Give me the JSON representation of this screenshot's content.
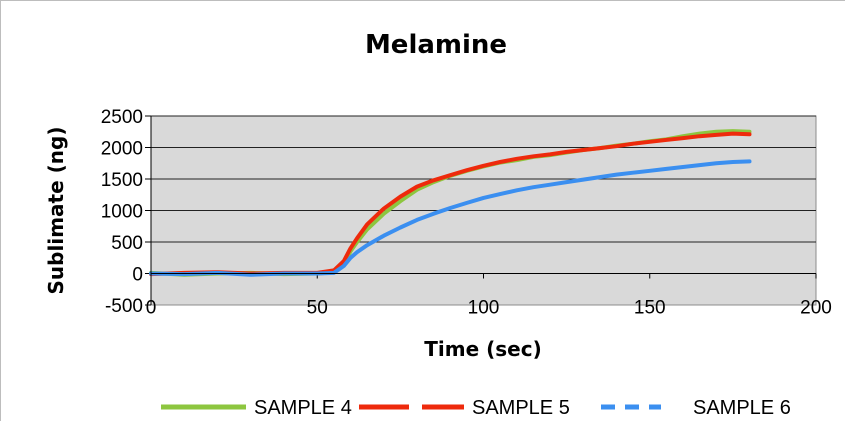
{
  "chart_data": {
    "type": "line",
    "title": "Melamine",
    "xlabel": "Time (sec)",
    "ylabel": "Sublimate (ng)",
    "xlim": [
      0,
      200
    ],
    "ylim": [
      -500,
      2500
    ],
    "x_ticks": [
      0,
      50,
      100,
      150,
      200
    ],
    "y_ticks": [
      -500,
      0,
      500,
      1000,
      1500,
      2000,
      2500
    ],
    "x_tick_labels": [
      "0",
      "50",
      "100",
      "150",
      "200"
    ],
    "y_tick_labels": [
      "-500",
      "0",
      "500",
      "1000",
      "1500",
      "2000",
      "2500"
    ],
    "grid": "horizontal",
    "legend_position": "bottom",
    "background_color": "#d9d9d9",
    "series": [
      {
        "name": "SAMPLE 4",
        "color": "#8dc63f",
        "style": "solid",
        "x": [
          0,
          10,
          20,
          30,
          40,
          50,
          55,
          58,
          60,
          62,
          65,
          70,
          75,
          80,
          85,
          90,
          95,
          100,
          105,
          110,
          115,
          120,
          125,
          130,
          135,
          140,
          145,
          150,
          155,
          160,
          165,
          170,
          175,
          180
        ],
        "values": [
          10,
          -20,
          0,
          10,
          -10,
          0,
          20,
          150,
          350,
          500,
          700,
          950,
          1150,
          1330,
          1450,
          1550,
          1630,
          1700,
          1760,
          1800,
          1850,
          1880,
          1920,
          1960,
          1990,
          2030,
          2060,
          2100,
          2130,
          2180,
          2220,
          2250,
          2260,
          2250
        ]
      },
      {
        "name": "SAMPLE 5",
        "color": "#ee2a0c",
        "style": "dashed",
        "x": [
          0,
          10,
          20,
          30,
          40,
          50,
          55,
          58,
          60,
          62,
          65,
          70,
          75,
          80,
          85,
          90,
          95,
          100,
          105,
          110,
          115,
          120,
          125,
          130,
          135,
          140,
          145,
          150,
          155,
          160,
          165,
          170,
          175,
          180
        ],
        "values": [
          -10,
          10,
          20,
          0,
          10,
          10,
          50,
          200,
          400,
          560,
          780,
          1030,
          1220,
          1380,
          1480,
          1560,
          1640,
          1710,
          1770,
          1820,
          1860,
          1890,
          1930,
          1960,
          1990,
          2020,
          2060,
          2090,
          2120,
          2150,
          2180,
          2200,
          2220,
          2210
        ]
      },
      {
        "name": "SAMPLE 6",
        "color": "#3b8ff0",
        "style": "dotted",
        "x": [
          0,
          10,
          20,
          30,
          40,
          50,
          55,
          58,
          60,
          62,
          65,
          70,
          75,
          80,
          85,
          90,
          95,
          100,
          105,
          110,
          115,
          120,
          125,
          130,
          135,
          140,
          145,
          150,
          155,
          160,
          165,
          170,
          175,
          180
        ],
        "values": [
          0,
          -10,
          10,
          -20,
          0,
          0,
          10,
          120,
          250,
          340,
          450,
          600,
          730,
          850,
          950,
          1040,
          1120,
          1200,
          1260,
          1320,
          1370,
          1410,
          1450,
          1490,
          1530,
          1570,
          1600,
          1630,
          1660,
          1690,
          1720,
          1750,
          1770,
          1780
        ]
      }
    ]
  }
}
